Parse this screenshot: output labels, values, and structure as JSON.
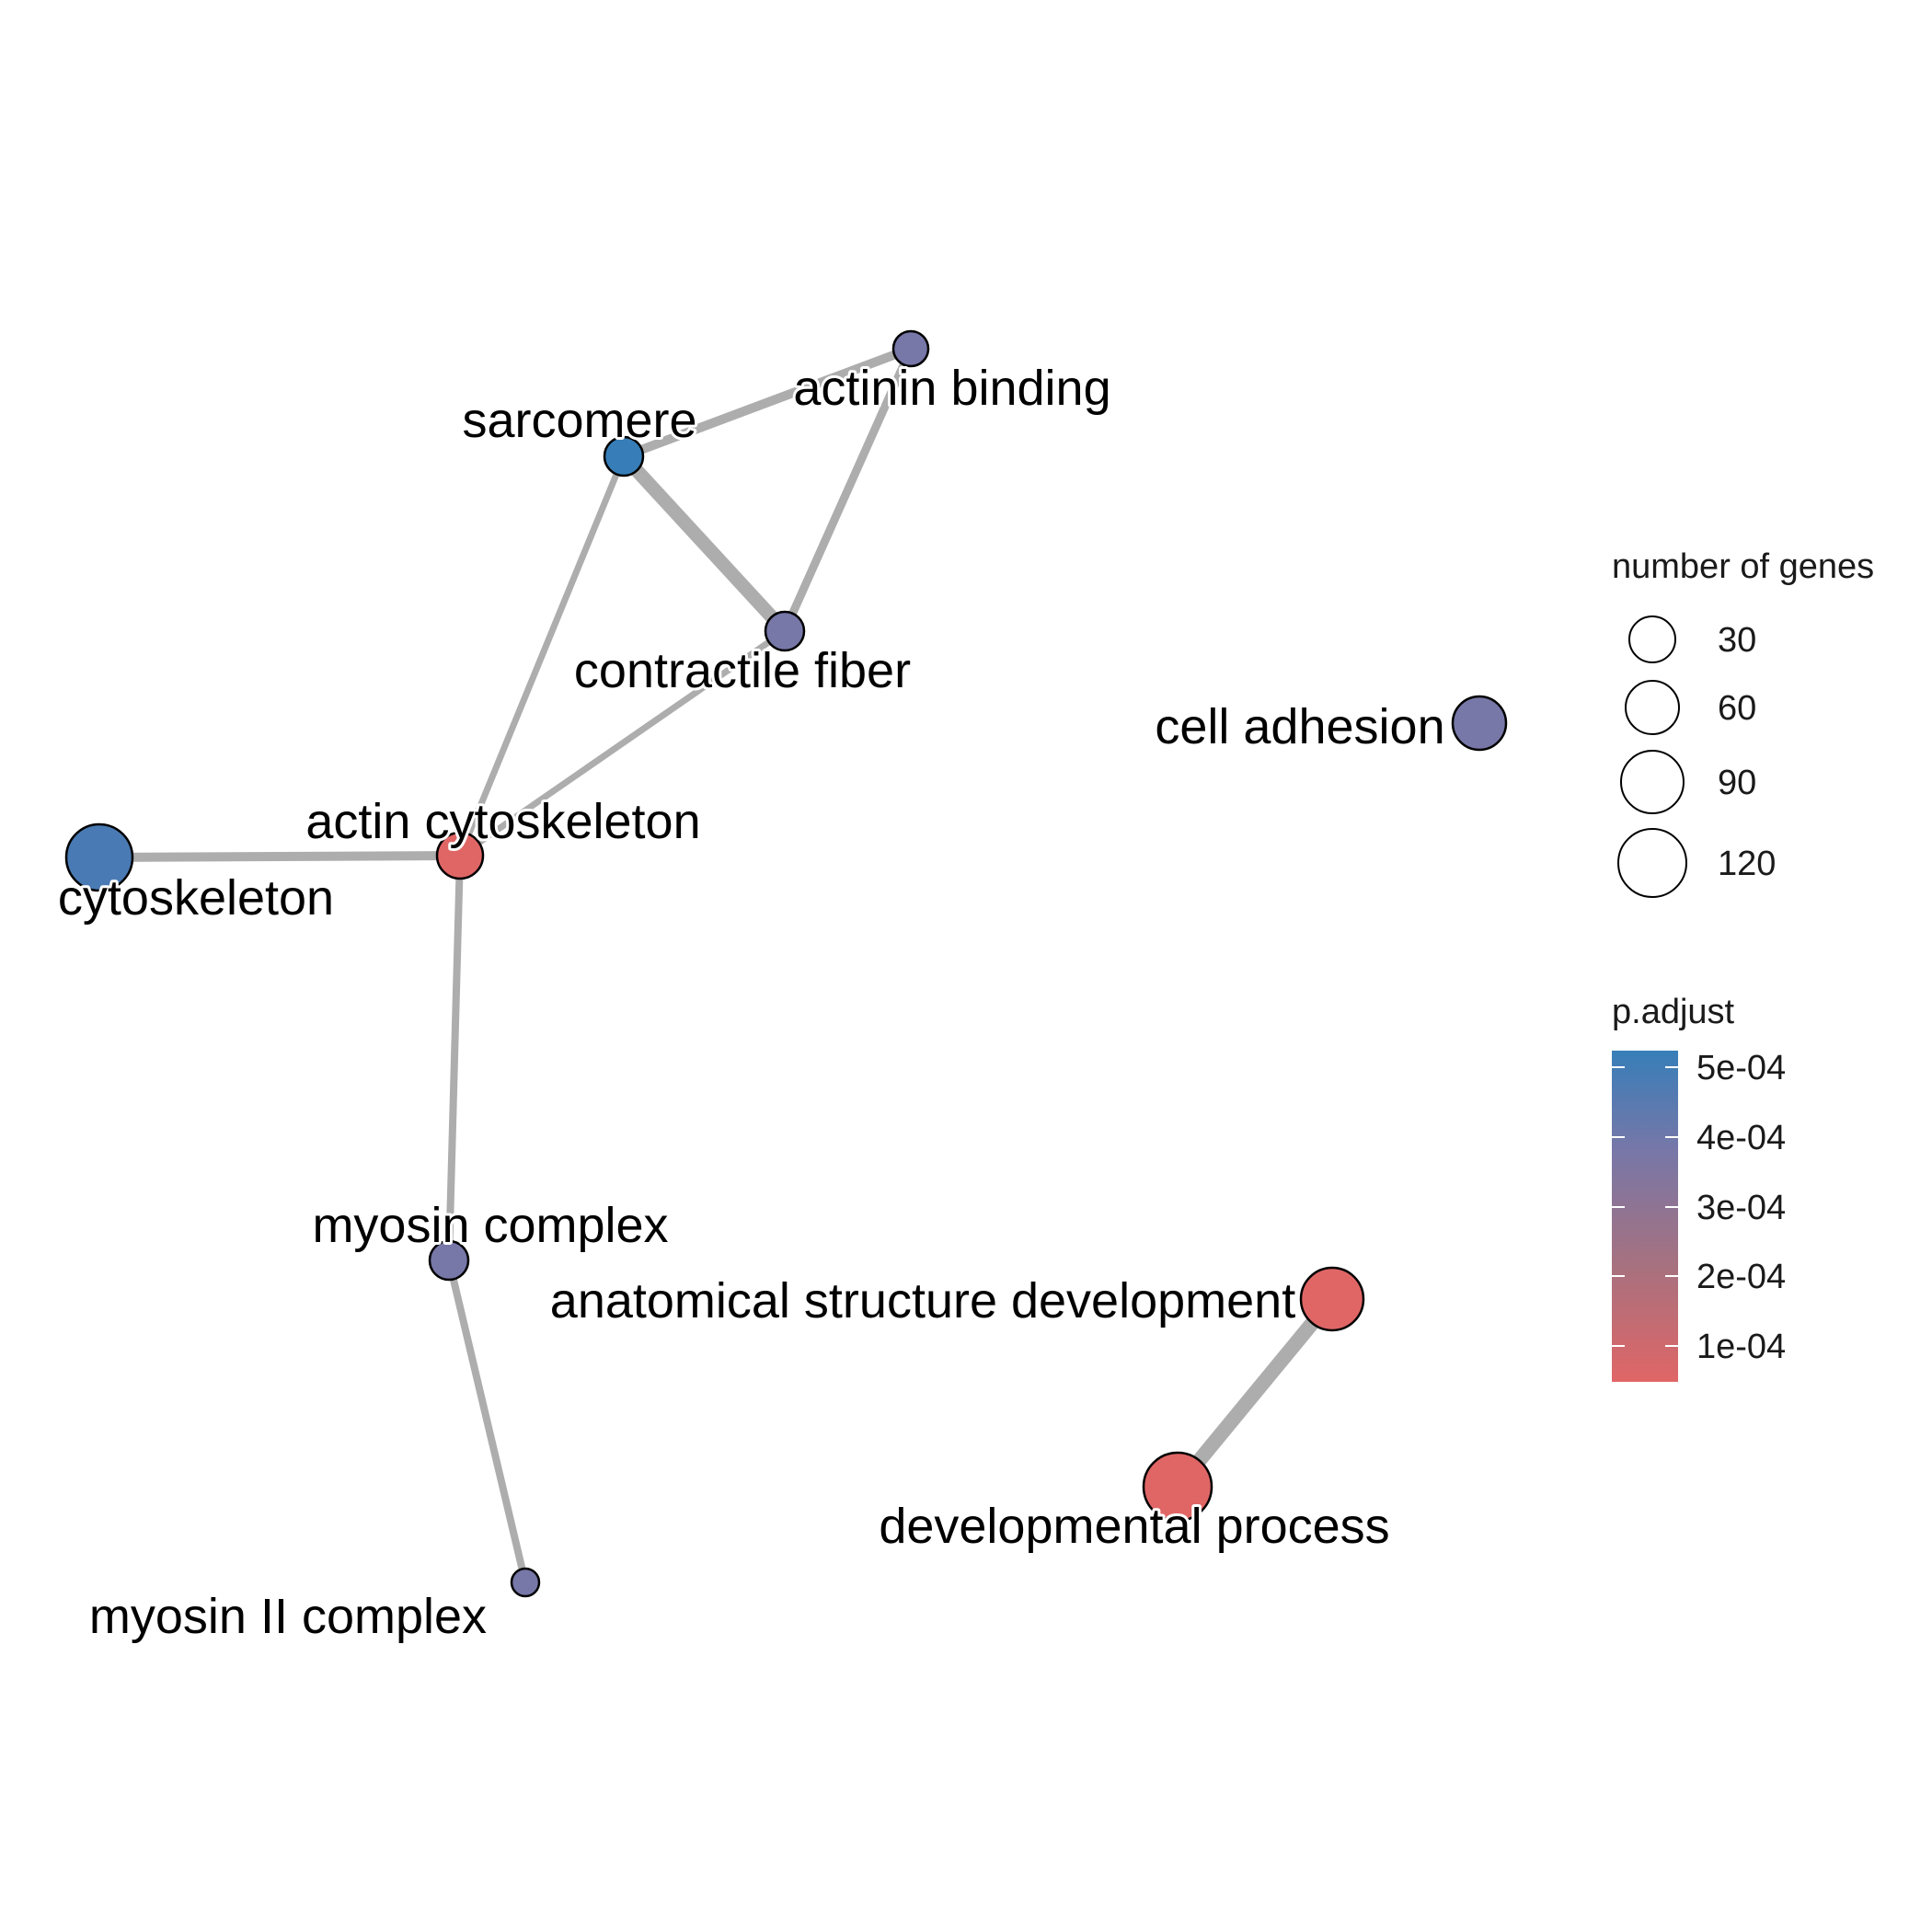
{
  "nodes": [
    {
      "id": "actinin-binding",
      "label": "actinin binding",
      "p_adjust": 0.00041
    },
    {
      "id": "sarcomere",
      "label": "sarcomere",
      "p_adjust": 0.0005
    },
    {
      "id": "contractile-fiber",
      "label": "contractile fiber",
      "p_adjust": 0.00041
    },
    {
      "id": "cell-adhesion",
      "label": "cell adhesion",
      "p_adjust": 0.00041
    },
    {
      "id": "actin-cytoskeleton",
      "label": "actin cytoskeleton",
      "p_adjust": 5e-05
    },
    {
      "id": "cytoskeleton",
      "label": "cytoskeleton",
      "p_adjust": 0.00047
    },
    {
      "id": "myosin-complex",
      "label": "myosin complex",
      "p_adjust": 0.00041
    },
    {
      "id": "anatomical-structure-development",
      "label": "anatomical structure development",
      "p_adjust": 5e-05
    },
    {
      "id": "developmental-process",
      "label": "developmental process",
      "p_adjust": 5e-05
    },
    {
      "id": "myosin-ii-complex",
      "label": "myosin II complex",
      "p_adjust": 0.00041
    }
  ],
  "edges": [
    {
      "source": "sarcomere",
      "target": "actinin-binding"
    },
    {
      "source": "actinin-binding",
      "target": "contractile-fiber"
    },
    {
      "source": "sarcomere",
      "target": "contractile-fiber"
    },
    {
      "source": "sarcomere",
      "target": "actin-cytoskeleton"
    },
    {
      "source": "contractile-fiber",
      "target": "actin-cytoskeleton"
    },
    {
      "source": "cytoskeleton",
      "target": "actin-cytoskeleton"
    },
    {
      "source": "actin-cytoskeleton",
      "target": "myosin-complex"
    },
    {
      "source": "myosin-complex",
      "target": "myosin-ii-complex"
    },
    {
      "source": "anatomical-structure-development",
      "target": "developmental-process"
    }
  ],
  "legend_size": {
    "title": "number of genes",
    "items": [
      {
        "label": "30",
        "value": 30
      },
      {
        "label": "60",
        "value": 60
      },
      {
        "label": "90",
        "value": 90
      },
      {
        "label": "120",
        "value": 120
      }
    ]
  },
  "legend_color": {
    "title": "p.adjust",
    "ticks": [
      "5e-04",
      "4e-04",
      "3e-04",
      "2e-04",
      "1e-04"
    ],
    "high_color": "#377EB8",
    "low_color": "#E06666"
  },
  "colors": {
    "edge": "#ADADAD",
    "node_stroke": "#000000",
    "node_blue": "#377EB8",
    "node_steel": "#4A7AB3",
    "node_purple": "#7777A8",
    "node_red": "#E06666"
  }
}
